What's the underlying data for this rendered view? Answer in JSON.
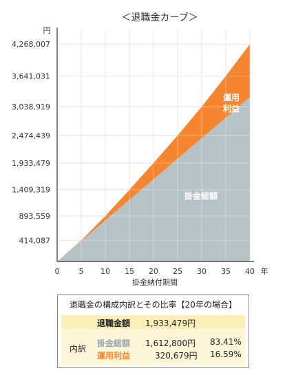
{
  "chart_data": {
    "type": "area",
    "title": "＜退職金カーブ＞",
    "yunit": "円",
    "xunit": "年",
    "xlabel": "掛金納付期間",
    "x_ticks": [
      0,
      5,
      10,
      15,
      20,
      25,
      30,
      35,
      40
    ],
    "y_ticks": [
      {
        "value": 414087,
        "label": "414,087"
      },
      {
        "value": 893559,
        "label": "893,559"
      },
      {
        "value": 1409319,
        "label": "1,409,319"
      },
      {
        "value": 1933479,
        "label": "1,933,479"
      },
      {
        "value": 2474439,
        "label": "2,474,439"
      },
      {
        "value": 3038919,
        "label": "3,038,919"
      },
      {
        "value": 3641031,
        "label": "3,641,031"
      },
      {
        "value": 4268007,
        "label": "4,268,007"
      }
    ],
    "xlim": [
      0,
      40
    ],
    "grid": true,
    "series": [
      {
        "name": "掛金総額",
        "color": "#b7c2c7",
        "x": [
          0,
          5,
          10,
          15,
          20,
          25,
          30,
          35,
          40
        ],
        "values": [
          0,
          402000,
          805000,
          1210000,
          1612800,
          2016000,
          2420000,
          2824000,
          3225600
        ]
      },
      {
        "name": "運用利益",
        "color": "#f5852f",
        "x": [
          0,
          5,
          10,
          15,
          20,
          25,
          30,
          35,
          40
        ],
        "values": [
          0,
          12087,
          88559,
          199319,
          320679,
          458439,
          618919,
          817031,
          1042407
        ]
      }
    ],
    "series_label_lines": {
      "掛金総額": [
        "掛金総額"
      ],
      "運用利益": [
        "運用",
        "利益"
      ]
    }
  },
  "breakdown": {
    "title": "退職金の構成内訳とその比率【20年の場合】",
    "total_label": "退職金額",
    "total_value": "1,933,479円",
    "group_label": "内訳",
    "contrib_label": "掛金総額",
    "contrib_value": "1,612,800円",
    "contrib_pct": "83.41%",
    "profit_label": "運用利益",
    "profit_value": "320,679円",
    "profit_pct": "16.59%"
  }
}
